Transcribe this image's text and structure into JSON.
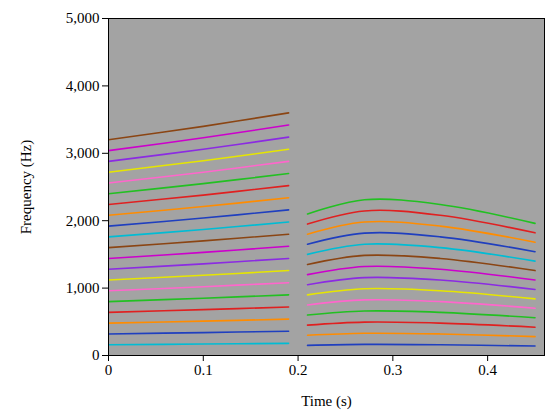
{
  "chart_data": {
    "type": "line",
    "x_label": "Time (s)",
    "y_label": "Frequency (Hz)",
    "xlim": [
      0,
      0.46
    ],
    "xticks": [
      0,
      0.1,
      0.2,
      0.3,
      0.4
    ],
    "ylim": [
      0,
      5000
    ],
    "yticks": [
      0,
      {
        "value": 1000,
        "label": "1,000"
      },
      {
        "value": 2000,
        "label": "2,000"
      },
      {
        "value": 3000,
        "label": "3,000"
      },
      {
        "value": 4000,
        "label": "4,000"
      },
      {
        "value": 5000,
        "label": "5,000"
      }
    ],
    "grid": false,
    "series": [
      {
        "color": "#00bcd4",
        "x": [
          0,
          0.1,
          0.19
        ],
        "values": [
          160,
          170,
          180
        ]
      },
      {
        "color": "#1f3fbf",
        "x": [
          0,
          0.1,
          0.19
        ],
        "values": [
          320,
          340,
          360
        ]
      },
      {
        "color": "#ff8c00",
        "x": [
          0,
          0.1,
          0.19
        ],
        "values": [
          480,
          510,
          540
        ]
      },
      {
        "color": "#e02020",
        "x": [
          0,
          0.1,
          0.19
        ],
        "values": [
          640,
          680,
          720
        ]
      },
      {
        "color": "#22c022",
        "x": [
          0,
          0.1,
          0.19
        ],
        "values": [
          800,
          850,
          900
        ]
      },
      {
        "color": "#ff66cc",
        "x": [
          0,
          0.1,
          0.19
        ],
        "values": [
          960,
          1020,
          1080
        ]
      },
      {
        "color": "#e6e600",
        "x": [
          0,
          0.1,
          0.19
        ],
        "values": [
          1120,
          1190,
          1260
        ]
      },
      {
        "color": "#8b2be2",
        "x": [
          0,
          0.1,
          0.19
        ],
        "values": [
          1280,
          1360,
          1440
        ]
      },
      {
        "color": "#cc00cc",
        "x": [
          0,
          0.1,
          0.19
        ],
        "values": [
          1440,
          1530,
          1620
        ]
      },
      {
        "color": "#8b4513",
        "x": [
          0,
          0.1,
          0.19
        ],
        "values": [
          1600,
          1700,
          1800
        ]
      },
      {
        "color": "#00bcd4",
        "x": [
          0,
          0.1,
          0.19
        ],
        "values": [
          1760,
          1870,
          1980
        ]
      },
      {
        "color": "#1f3fbf",
        "x": [
          0,
          0.1,
          0.19
        ],
        "values": [
          1920,
          2040,
          2160
        ]
      },
      {
        "color": "#ff8c00",
        "x": [
          0,
          0.1,
          0.19
        ],
        "values": [
          2080,
          2210,
          2340
        ]
      },
      {
        "color": "#e02020",
        "x": [
          0,
          0.1,
          0.19
        ],
        "values": [
          2240,
          2380,
          2520
        ]
      },
      {
        "color": "#22c022",
        "x": [
          0,
          0.1,
          0.19
        ],
        "values": [
          2400,
          2550,
          2700
        ]
      },
      {
        "color": "#ff66cc",
        "x": [
          0,
          0.1,
          0.19
        ],
        "values": [
          2560,
          2720,
          2880
        ]
      },
      {
        "color": "#e6e600",
        "x": [
          0,
          0.1,
          0.19
        ],
        "values": [
          2720,
          2890,
          3060
        ]
      },
      {
        "color": "#8b2be2",
        "x": [
          0,
          0.1,
          0.19
        ],
        "values": [
          2880,
          3060,
          3240
        ]
      },
      {
        "color": "#cc00cc",
        "x": [
          0,
          0.1,
          0.19
        ],
        "values": [
          3040,
          3230,
          3420
        ]
      },
      {
        "color": "#8b4513",
        "x": [
          0,
          0.1,
          0.19
        ],
        "values": [
          3200,
          3400,
          3600
        ]
      },
      {
        "color": "#1f3fbf",
        "x": [
          0.21,
          0.27,
          0.35,
          0.45
        ],
        "values": [
          150,
          165,
          160,
          140
        ]
      },
      {
        "color": "#ff8c00",
        "x": [
          0.21,
          0.27,
          0.35,
          0.45
        ],
        "values": [
          300,
          330,
          320,
          280
        ]
      },
      {
        "color": "#e02020",
        "x": [
          0.21,
          0.27,
          0.35,
          0.45
        ],
        "values": [
          450,
          495,
          480,
          420
        ]
      },
      {
        "color": "#22c022",
        "x": [
          0.21,
          0.27,
          0.35,
          0.45
        ],
        "values": [
          600,
          660,
          640,
          560
        ]
      },
      {
        "color": "#ff66cc",
        "x": [
          0.21,
          0.27,
          0.35,
          0.45
        ],
        "values": [
          750,
          825,
          800,
          700
        ]
      },
      {
        "color": "#e6e600",
        "x": [
          0.21,
          0.27,
          0.35,
          0.45
        ],
        "values": [
          900,
          990,
          960,
          840
        ]
      },
      {
        "color": "#8b2be2",
        "x": [
          0.21,
          0.27,
          0.35,
          0.45
        ],
        "values": [
          1050,
          1155,
          1120,
          980
        ]
      },
      {
        "color": "#cc00cc",
        "x": [
          0.21,
          0.27,
          0.35,
          0.45
        ],
        "values": [
          1200,
          1320,
          1280,
          1120
        ]
      },
      {
        "color": "#8b4513",
        "x": [
          0.21,
          0.27,
          0.35,
          0.45
        ],
        "values": [
          1350,
          1485,
          1440,
          1260
        ]
      },
      {
        "color": "#00bcd4",
        "x": [
          0.21,
          0.27,
          0.35,
          0.45
        ],
        "values": [
          1500,
          1650,
          1600,
          1400
        ]
      },
      {
        "color": "#1f3fbf",
        "x": [
          0.21,
          0.27,
          0.35,
          0.45
        ],
        "values": [
          1650,
          1815,
          1760,
          1540
        ]
      },
      {
        "color": "#ff8c00",
        "x": [
          0.21,
          0.27,
          0.35,
          0.45
        ],
        "values": [
          1800,
          1980,
          1920,
          1680
        ]
      },
      {
        "color": "#e02020",
        "x": [
          0.21,
          0.27,
          0.35,
          0.45
        ],
        "values": [
          1950,
          2145,
          2080,
          1820
        ]
      },
      {
        "color": "#22c022",
        "x": [
          0.21,
          0.27,
          0.35,
          0.45
        ],
        "values": [
          2100,
          2310,
          2240,
          1960
        ]
      }
    ]
  }
}
